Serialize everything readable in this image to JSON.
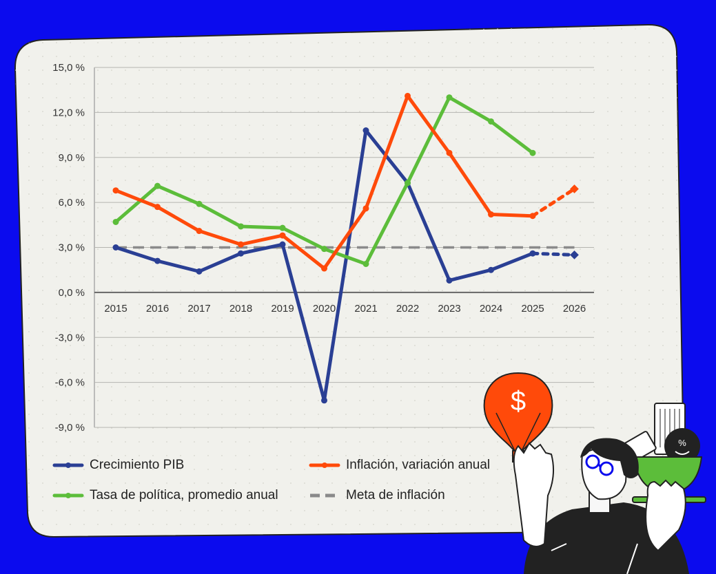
{
  "colors": {
    "background": "#0b0bee",
    "card": "#f1f1ec",
    "pib": "#2a3f94",
    "inflacion": "#ff4a0a",
    "tasa": "#5cbd3a",
    "meta": "#8a8a8a"
  },
  "chart_data": {
    "type": "line",
    "categories": [
      "2015",
      "2016",
      "2017",
      "2018",
      "2019",
      "2020",
      "2021",
      "2022",
      "2023",
      "2024",
      "2025",
      "2026"
    ],
    "ylim": [
      -9,
      15
    ],
    "yticks": [
      15,
      12,
      9,
      6,
      3,
      0,
      -3,
      -6,
      -9
    ],
    "ytick_labels": [
      "15,0 %",
      "12,0 %",
      "9,0 %",
      "6,0 %",
      "3,0 %",
      "0,0 %",
      "-3,0 %",
      "-6,0 %",
      "-9,0 %"
    ],
    "grid": true,
    "series": [
      {
        "name": "Crecimiento PIB",
        "color": "#2a3f94",
        "values": [
          3.0,
          2.1,
          1.4,
          2.6,
          3.2,
          -7.2,
          10.8,
          7.3,
          0.8,
          1.5,
          2.6,
          2.5
        ],
        "projected_from_index": 10
      },
      {
        "name": "Inflación, variación anual",
        "color": "#ff4a0a",
        "values": [
          6.8,
          5.7,
          4.1,
          3.2,
          3.8,
          1.6,
          5.6,
          13.1,
          9.3,
          5.2,
          5.1,
          6.9
        ],
        "projected_from_index": 10
      },
      {
        "name": "Tasa de política, promedio anual",
        "color": "#5cbd3a",
        "values": [
          4.7,
          7.1,
          5.9,
          4.4,
          4.3,
          2.9,
          1.9,
          7.3,
          13.0,
          11.4,
          9.3,
          null
        ]
      },
      {
        "name": "Meta de inflación",
        "color": "#8a8a8a",
        "dashed": true,
        "values": [
          3,
          3,
          3,
          3,
          3,
          3,
          3,
          3,
          3,
          3,
          3,
          3
        ]
      }
    ]
  },
  "legend": {
    "pib": "Crecimiento PIB",
    "inflacion": "Inflación, variación anual",
    "tasa": "Tasa de política, promedio anual",
    "meta": "Meta de inflación"
  },
  "illustration": {
    "balloon_symbol": "$",
    "badge_symbol": "%"
  }
}
